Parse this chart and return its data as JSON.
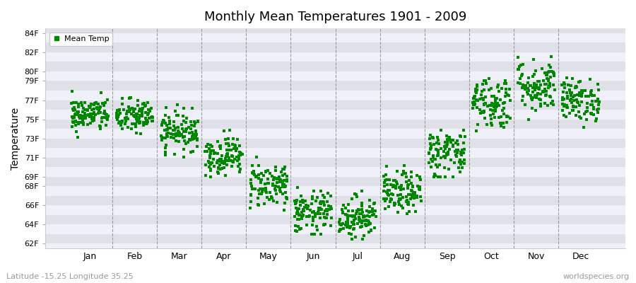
{
  "title": "Monthly Mean Temperatures 1901 - 2009",
  "ylabel": "Temperature",
  "xlabel_months": [
    "Jan",
    "Feb",
    "Mar",
    "Apr",
    "May",
    "Jun",
    "Jul",
    "Aug",
    "Sep",
    "Oct",
    "Nov",
    "Dec"
  ],
  "yticks_all": [
    62,
    63,
    64,
    65,
    66,
    67,
    68,
    69,
    70,
    71,
    72,
    73,
    74,
    75,
    76,
    77,
    78,
    79,
    80,
    81,
    82,
    83,
    84
  ],
  "ytick_labeled": [
    62,
    64,
    66,
    68,
    69,
    71,
    73,
    75,
    77,
    79,
    80,
    82,
    84
  ],
  "ytick_label_strs": [
    "62F",
    "64F",
    "66F",
    "68F",
    "69F",
    "71F",
    "73F",
    "75F",
    "77F",
    "79F",
    "80F",
    "82F",
    "84F"
  ],
  "ylim": [
    61.5,
    84.5
  ],
  "xlim": [
    -0.5,
    12.5
  ],
  "dot_color": "#008800",
  "dot_size": 6,
  "legend_label": "Mean Temp",
  "subtitle": "Latitude -15.25 Longitude 35.25",
  "watermark": "worldspecies.org",
  "background_color": "#ffffff",
  "band_color_dark": "#e0e0e8",
  "band_color_light": "#f0f0f8",
  "monthly_means": [
    75.5,
    75.3,
    73.8,
    71.2,
    68.2,
    65.2,
    64.8,
    67.3,
    71.5,
    76.8,
    78.5,
    77.0
  ],
  "monthly_stds": [
    0.9,
    0.9,
    1.0,
    1.0,
    1.2,
    1.1,
    1.1,
    1.1,
    1.3,
    1.4,
    1.4,
    1.1
  ],
  "monthly_ranges": [
    [
      73.0,
      78.5
    ],
    [
      73.5,
      77.5
    ],
    [
      71.0,
      76.5
    ],
    [
      69.0,
      74.0
    ],
    [
      65.5,
      71.5
    ],
    [
      63.0,
      68.5
    ],
    [
      62.5,
      68.0
    ],
    [
      65.0,
      70.5
    ],
    [
      69.0,
      76.0
    ],
    [
      73.5,
      82.0
    ],
    [
      75.0,
      83.0
    ],
    [
      74.0,
      79.5
    ]
  ],
  "n_years": 109,
  "seed": 42
}
